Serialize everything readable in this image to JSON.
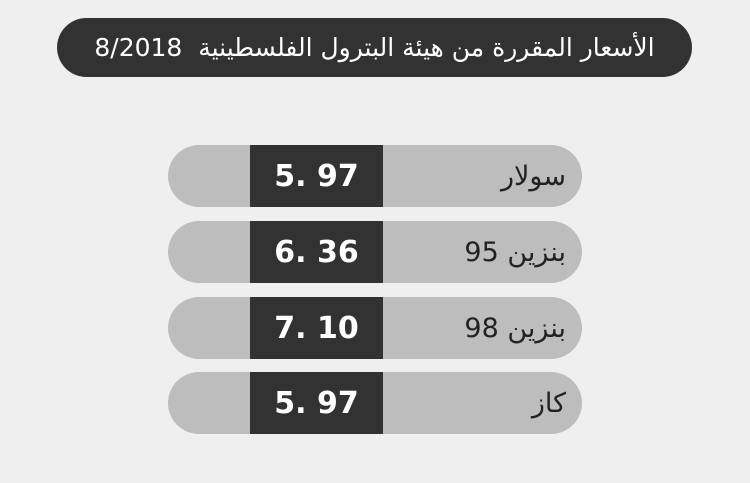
{
  "header": {
    "title": "الأسعار المقررة من هيئة البترول الفلسطينية  8/2018"
  },
  "table": {
    "rows": [
      [
        "سولار",
        "5. 97"
      ],
      [
        "بنزين 95",
        "6. 36"
      ],
      [
        "بنزين 98",
        "7. 10"
      ],
      [
        "كاز",
        "5. 97"
      ]
    ]
  }
}
